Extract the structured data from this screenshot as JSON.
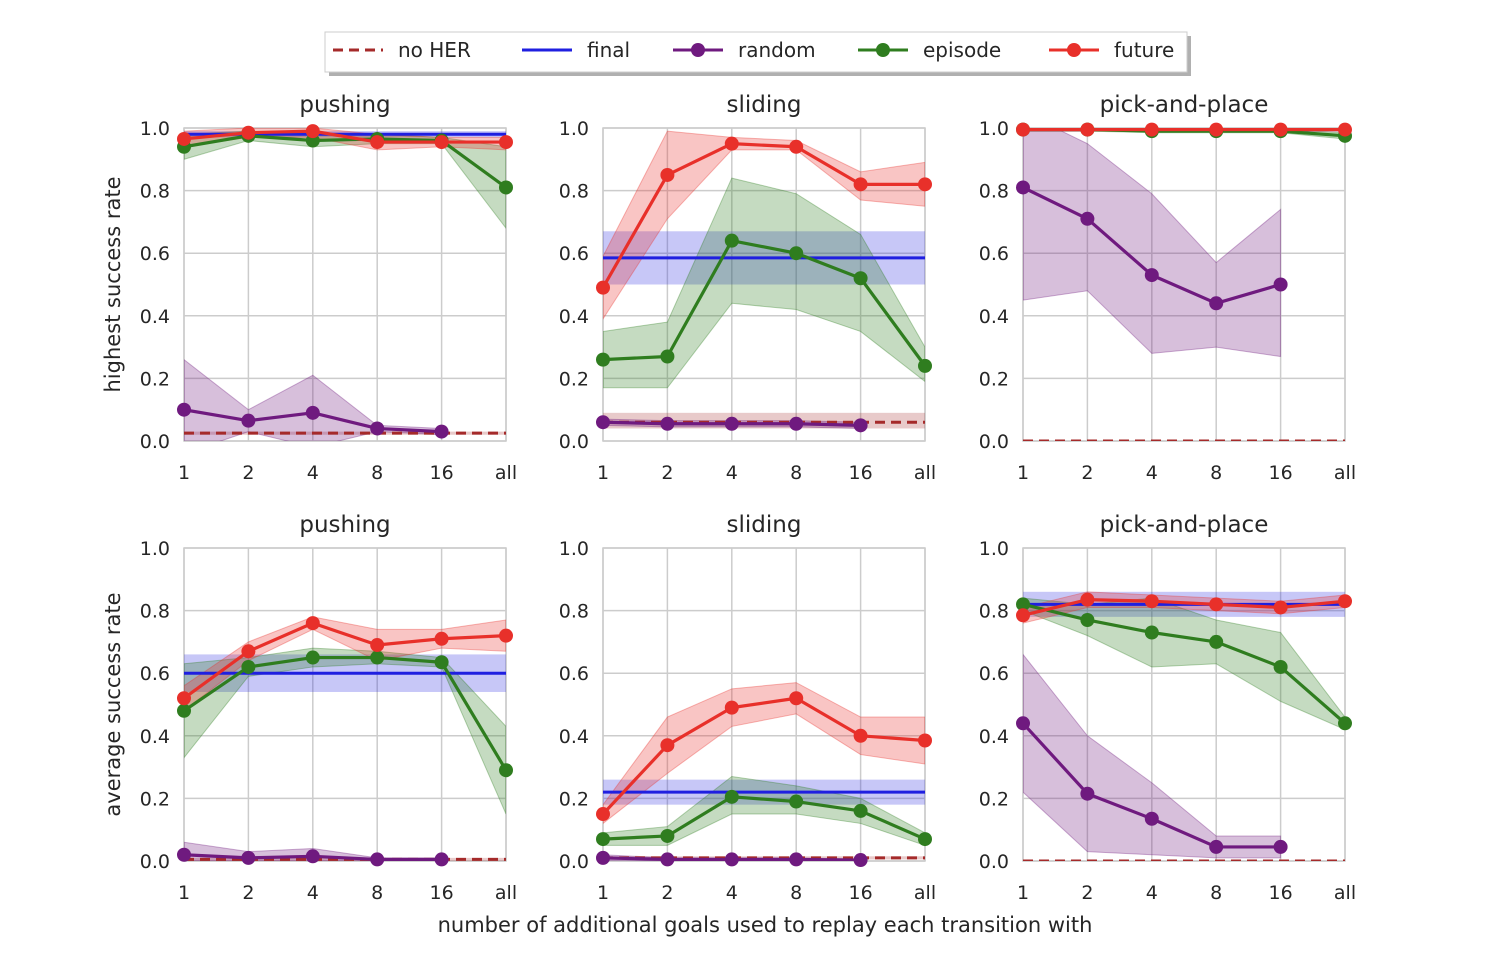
{
  "chart_data": {
    "type": "line",
    "xlabel": "number of additional goals used to replay each transition with",
    "categories": [
      "1",
      "2",
      "4",
      "8",
      "16",
      "all"
    ],
    "ylim": [
      0,
      1
    ],
    "yticks": [
      "0.0",
      "0.2",
      "0.4",
      "0.6",
      "0.8",
      "1.0"
    ],
    "legend": [
      {
        "key": "noher",
        "label": "no HER",
        "color": "#a52a2a",
        "style": "dashed"
      },
      {
        "key": "final",
        "label": "final",
        "color": "#1f1fe0",
        "style": "solid"
      },
      {
        "key": "random",
        "label": "random",
        "color": "#6f1a7f",
        "style": "marker"
      },
      {
        "key": "episode",
        "label": "episode",
        "color": "#2f7d1f",
        "style": "marker"
      },
      {
        "key": "future",
        "label": "future",
        "color": "#e8302a",
        "style": "marker"
      }
    ],
    "panels": [
      {
        "title": "pushing",
        "ylabel": "highest success rate",
        "series": {
          "noher": {
            "value": 0.025,
            "low": 0.02,
            "high": 0.03
          },
          "final": {
            "value": 0.98,
            "low": 0.97,
            "high": 0.99
          },
          "random": {
            "values": [
              0.1,
              0.065,
              0.09,
              0.04,
              0.03,
              null
            ],
            "low": [
              -0.04,
              0.03,
              -0.02,
              0.03,
              0.02,
              null
            ],
            "high": [
              0.26,
              0.1,
              0.21,
              0.05,
              0.04,
              null
            ]
          },
          "episode": {
            "values": [
              0.94,
              0.975,
              0.96,
              0.965,
              0.96,
              0.81
            ],
            "low": [
              0.9,
              0.96,
              0.94,
              0.95,
              0.95,
              0.68
            ],
            "high": [
              0.98,
              0.99,
              0.98,
              0.98,
              0.97,
              0.94
            ]
          },
          "future": {
            "values": [
              0.965,
              0.985,
              0.99,
              0.955,
              0.955,
              0.955
            ],
            "low": [
              0.94,
              0.97,
              0.97,
              0.93,
              0.94,
              0.93
            ],
            "high": [
              0.99,
              1.0,
              1.0,
              0.98,
              0.97,
              0.97
            ]
          }
        }
      },
      {
        "title": "sliding",
        "ylabel": "",
        "series": {
          "noher": {
            "value": 0.06,
            "low": 0.04,
            "high": 0.09
          },
          "final": {
            "value": 0.585,
            "low": 0.5,
            "high": 0.67
          },
          "random": {
            "values": [
              0.06,
              0.055,
              0.055,
              0.055,
              0.05,
              null
            ],
            "low": [
              0.05,
              0.045,
              0.045,
              0.045,
              0.04,
              null
            ],
            "high": [
              0.07,
              0.065,
              0.065,
              0.065,
              0.06,
              null
            ]
          },
          "episode": {
            "values": [
              0.26,
              0.27,
              0.64,
              0.6,
              0.52,
              0.24
            ],
            "low": [
              0.17,
              0.17,
              0.44,
              0.42,
              0.35,
              0.19
            ],
            "high": [
              0.35,
              0.38,
              0.84,
              0.79,
              0.66,
              0.3
            ]
          },
          "future": {
            "values": [
              0.49,
              0.85,
              0.95,
              0.94,
              0.82,
              0.82
            ],
            "low": [
              0.39,
              0.71,
              0.93,
              0.93,
              0.77,
              0.75
            ],
            "high": [
              0.59,
              0.99,
              0.97,
              0.96,
              0.86,
              0.89
            ]
          }
        }
      },
      {
        "title": "pick-and-place",
        "ylabel": "",
        "series": {
          "noher": {
            "value": 0.0,
            "low": 0.0,
            "high": 0.0
          },
          "final": {
            "value": 0.995,
            "low": 0.99,
            "high": 1.0
          },
          "random": {
            "values": [
              0.81,
              0.71,
              0.53,
              0.44,
              0.5,
              null
            ],
            "low": [
              0.45,
              0.48,
              0.28,
              0.3,
              0.27,
              null
            ],
            "high": [
              1.05,
              0.95,
              0.79,
              0.57,
              0.74,
              null
            ]
          },
          "episode": {
            "values": [
              0.995,
              0.995,
              0.99,
              0.99,
              0.99,
              0.975
            ],
            "low": [
              0.99,
              0.99,
              0.985,
              0.985,
              0.985,
              0.965
            ],
            "high": [
              1.0,
              1.0,
              0.995,
              0.995,
              0.995,
              0.985
            ]
          },
          "future": {
            "values": [
              0.995,
              0.995,
              0.995,
              0.995,
              0.995,
              0.995
            ],
            "low": [
              0.99,
              0.99,
              0.99,
              0.99,
              0.99,
              0.99
            ],
            "high": [
              1.0,
              1.0,
              1.0,
              1.0,
              1.0,
              1.0
            ]
          }
        }
      },
      {
        "title": "pushing",
        "ylabel": "average success rate",
        "series": {
          "noher": {
            "value": 0.005,
            "low": 0.0,
            "high": 0.01
          },
          "final": {
            "value": 0.6,
            "low": 0.54,
            "high": 0.66
          },
          "random": {
            "values": [
              0.02,
              0.01,
              0.015,
              0.005,
              0.005,
              null
            ],
            "low": [
              0.0,
              0.0,
              0.0,
              0.0,
              0.0,
              null
            ],
            "high": [
              0.06,
              0.03,
              0.04,
              0.01,
              0.01,
              null
            ]
          },
          "episode": {
            "values": [
              0.48,
              0.62,
              0.65,
              0.65,
              0.635,
              0.29
            ],
            "low": [
              0.33,
              0.59,
              0.62,
              0.63,
              0.62,
              0.15
            ],
            "high": [
              0.63,
              0.65,
              0.68,
              0.67,
              0.65,
              0.43
            ]
          },
          "future": {
            "values": [
              0.52,
              0.67,
              0.76,
              0.69,
              0.71,
              0.72
            ],
            "low": [
              0.48,
              0.64,
              0.74,
              0.64,
              0.68,
              0.67
            ],
            "high": [
              0.56,
              0.7,
              0.78,
              0.74,
              0.74,
              0.77
            ]
          }
        }
      },
      {
        "title": "sliding",
        "ylabel": "",
        "series": {
          "noher": {
            "value": 0.01,
            "low": 0.005,
            "high": 0.015
          },
          "final": {
            "value": 0.22,
            "low": 0.18,
            "high": 0.26
          },
          "random": {
            "values": [
              0.01,
              0.005,
              0.005,
              0.005,
              0.003,
              null
            ],
            "low": [
              0.0,
              0.0,
              0.0,
              0.0,
              0.0,
              null
            ],
            "high": [
              0.02,
              0.01,
              0.01,
              0.01,
              0.006,
              null
            ]
          },
          "episode": {
            "values": [
              0.07,
              0.08,
              0.205,
              0.19,
              0.16,
              0.07
            ],
            "low": [
              0.05,
              0.05,
              0.15,
              0.15,
              0.12,
              0.05
            ],
            "high": [
              0.09,
              0.11,
              0.27,
              0.24,
              0.2,
              0.09
            ]
          },
          "future": {
            "values": [
              0.15,
              0.37,
              0.49,
              0.52,
              0.4,
              0.385
            ],
            "low": [
              0.12,
              0.28,
              0.43,
              0.47,
              0.34,
              0.31
            ],
            "high": [
              0.18,
              0.46,
              0.55,
              0.57,
              0.46,
              0.46
            ]
          }
        }
      },
      {
        "title": "pick-and-place",
        "ylabel": "",
        "series": {
          "noher": {
            "value": 0.0,
            "low": 0.0,
            "high": 0.0
          },
          "final": {
            "value": 0.82,
            "low": 0.78,
            "high": 0.86
          },
          "random": {
            "values": [
              0.44,
              0.215,
              0.135,
              0.045,
              0.045,
              null
            ],
            "low": [
              0.22,
              0.03,
              0.02,
              0.01,
              0.01,
              null
            ],
            "high": [
              0.66,
              0.4,
              0.25,
              0.08,
              0.08,
              null
            ]
          },
          "episode": {
            "values": [
              0.82,
              0.77,
              0.73,
              0.7,
              0.62,
              0.44
            ],
            "low": [
              0.8,
              0.72,
              0.62,
              0.63,
              0.51,
              0.42
            ],
            "high": [
              0.84,
              0.82,
              0.84,
              0.77,
              0.73,
              0.46
            ]
          },
          "future": {
            "values": [
              0.785,
              0.835,
              0.83,
              0.82,
              0.81,
              0.83
            ],
            "low": [
              0.76,
              0.81,
              0.81,
              0.8,
              0.79,
              0.81
            ],
            "high": [
              0.81,
              0.86,
              0.85,
              0.84,
              0.83,
              0.85
            ]
          }
        }
      }
    ]
  }
}
